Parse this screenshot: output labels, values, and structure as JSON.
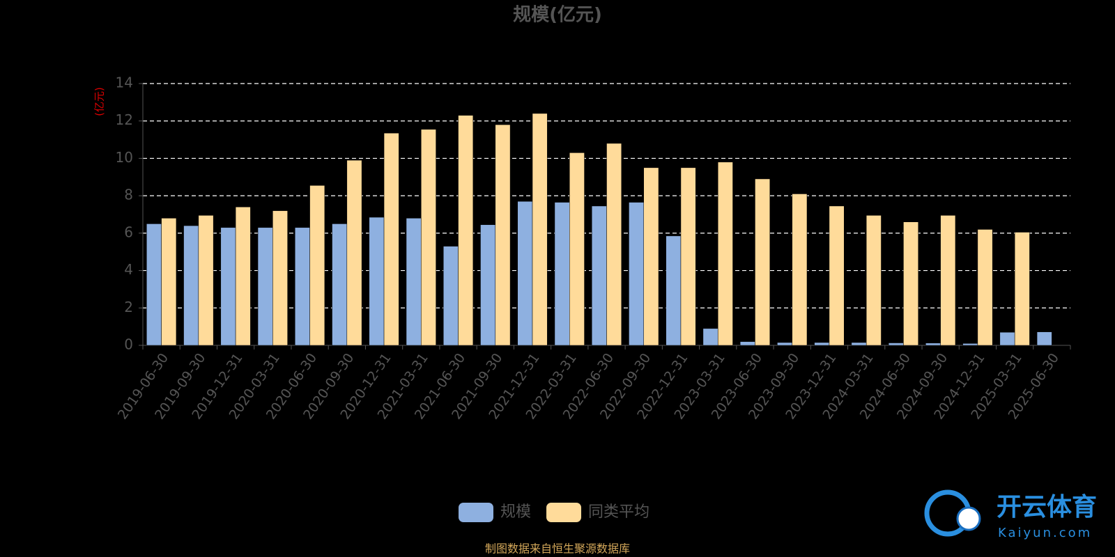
{
  "chart_data": {
    "type": "bar",
    "title": "规模(亿元)",
    "y_label": "(亿元)",
    "categories": [
      "2019-06-30",
      "2019-09-30",
      "2019-12-31",
      "2020-03-31",
      "2020-06-30",
      "2020-09-30",
      "2020-12-31",
      "2021-03-31",
      "2021-06-30",
      "2021-09-30",
      "2021-12-31",
      "2022-03-31",
      "2022-06-30",
      "2022-09-30",
      "2022-12-31",
      "2023-03-31",
      "2023-06-30",
      "2023-09-30",
      "2023-12-31",
      "2024-03-31",
      "2024-06-30",
      "2024-09-30",
      "2024-12-31",
      "2025-03-31",
      "2025-06-30"
    ],
    "series": [
      {
        "name": "规模",
        "color": "#8eb0e0",
        "values": [
          6.5,
          6.4,
          6.3,
          6.3,
          6.3,
          6.5,
          6.85,
          6.8,
          5.3,
          6.45,
          7.7,
          7.65,
          7.45,
          7.65,
          5.85,
          0.9,
          0.2,
          0.15,
          0.15,
          0.15,
          0.13,
          0.12,
          0.1,
          0.7,
          0.72
        ]
      },
      {
        "name": "同类平均",
        "color": "#ffdb9a",
        "values": [
          6.8,
          6.95,
          7.4,
          7.2,
          8.55,
          9.9,
          11.35,
          11.55,
          12.3,
          11.8,
          12.4,
          10.3,
          10.8,
          9.5,
          9.5,
          9.8,
          8.9,
          8.1,
          7.45,
          6.95,
          6.6,
          6.95,
          6.2,
          6.05,
          null
        ]
      }
    ],
    "ylim": [
      0,
      14
    ],
    "yticks": [
      0,
      2,
      4,
      6,
      8,
      10,
      12,
      14
    ],
    "grid": true,
    "legend": "bottom",
    "source": "制图数据来自恒生聚源数据库"
  },
  "watermark": {
    "name": "开云体育",
    "url": "Kaiyun.com"
  }
}
